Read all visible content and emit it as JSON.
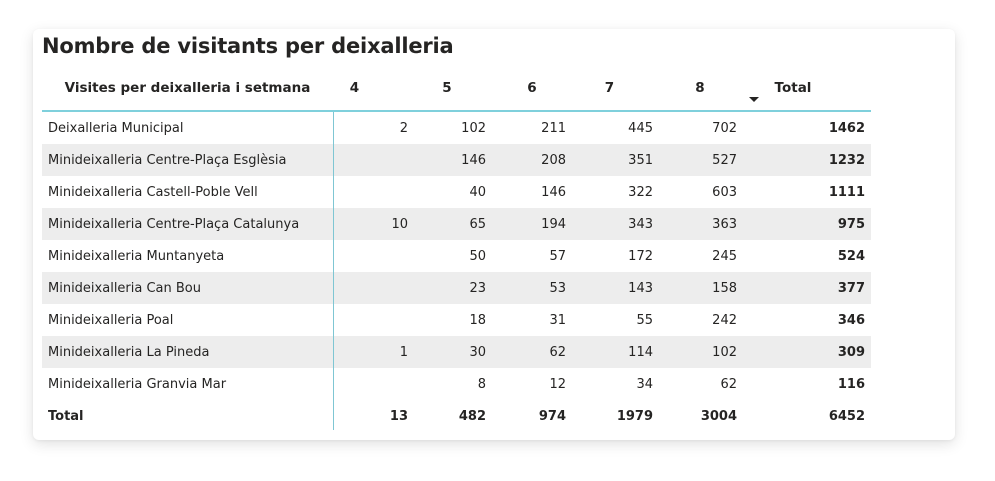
{
  "visual": {
    "title": "Nombre de visitants per deixalleria",
    "row_header": "Visites per deixalleria i setmana",
    "columns": [
      "4",
      "5",
      "6",
      "7",
      "8",
      "Total"
    ],
    "sorted_column": "Total",
    "sort_direction": "descending",
    "rows": [
      {
        "name": "Deixalleria Municipal",
        "values": [
          "2",
          "102",
          "211",
          "445",
          "702",
          "1462"
        ]
      },
      {
        "name": "Minideixalleria Centre-Plaça Esglèsia",
        "values": [
          "",
          "146",
          "208",
          "351",
          "527",
          "1232"
        ]
      },
      {
        "name": "Minideixalleria Castell-Poble Vell",
        "values": [
          "",
          "40",
          "146",
          "322",
          "603",
          "1111"
        ]
      },
      {
        "name": "Minideixalleria Centre-Plaça Catalunya",
        "values": [
          "10",
          "65",
          "194",
          "343",
          "363",
          "975"
        ]
      },
      {
        "name": "Minideixalleria Muntanyeta",
        "values": [
          "",
          "50",
          "57",
          "172",
          "245",
          "524"
        ]
      },
      {
        "name": "Minideixalleria Can Bou",
        "values": [
          "",
          "23",
          "53",
          "143",
          "158",
          "377"
        ]
      },
      {
        "name": "Minideixalleria Poal",
        "values": [
          "",
          "18",
          "31",
          "55",
          "242",
          "346"
        ]
      },
      {
        "name": "Minideixalleria La Pineda",
        "values": [
          "1",
          "30",
          "62",
          "114",
          "102",
          "309"
        ]
      },
      {
        "name": "Minideixalleria Granvia Mar",
        "values": [
          "",
          "8",
          "12",
          "34",
          "62",
          "116"
        ]
      }
    ],
    "total_row": {
      "name": "Total",
      "values": [
        "13",
        "482",
        "974",
        "1979",
        "3004",
        "6452"
      ]
    },
    "colors": {
      "accent_line": "#7fd0dc",
      "alt_row": "#ededed",
      "text": "#252423"
    }
  }
}
